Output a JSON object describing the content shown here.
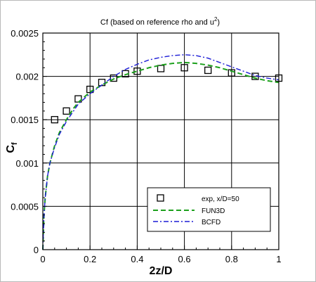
{
  "chart_data": {
    "type": "line",
    "title": "Cf (based on reference rho and u",
    "title_superscript": "2",
    "title_close": ")",
    "xlabel": "2z/D",
    "ylabel": "C",
    "ylabel_subscript": "f",
    "xlim": [
      0,
      1
    ],
    "ylim": [
      0,
      0.0025
    ],
    "x_ticks": [
      0,
      0.2,
      0.4,
      0.6,
      0.8,
      1
    ],
    "x_tick_labels": [
      "0",
      "0.2",
      "0.4",
      "0.6",
      "0.8",
      "1"
    ],
    "y_ticks": [
      0,
      0.0005,
      0.001,
      0.0015,
      0.002,
      0.0025
    ],
    "y_tick_labels": [
      "0",
      "0.0005",
      "0.001",
      "0.0015",
      "0.002",
      "0.0025"
    ],
    "grid": true,
    "legend_position": "bottom-right",
    "series": [
      {
        "name": "exp, x/D=50",
        "style": "markers",
        "marker": "open-square",
        "color": "#000000",
        "x": [
          0.05,
          0.1,
          0.15,
          0.2,
          0.25,
          0.3,
          0.35,
          0.4,
          0.5,
          0.6,
          0.7,
          0.8,
          0.9,
          1.0
        ],
        "y": [
          0.0015,
          0.0016,
          0.00174,
          0.00185,
          0.00193,
          0.00198,
          0.00203,
          0.00206,
          0.00209,
          0.0021,
          0.00207,
          0.00204,
          0.002,
          0.00198
        ]
      },
      {
        "name": "FUN3D",
        "style": "dashed",
        "color": "#1ca01c",
        "x": [
          0,
          0.005,
          0.01,
          0.02,
          0.03,
          0.05,
          0.07,
          0.1,
          0.13,
          0.15,
          0.2,
          0.25,
          0.3,
          0.35,
          0.4,
          0.45,
          0.5,
          0.55,
          0.6,
          0.65,
          0.7,
          0.75,
          0.8,
          0.85,
          0.9,
          0.95,
          1.0
        ],
        "y": [
          0,
          0.0004,
          0.0006,
          0.00085,
          0.001,
          0.0012,
          0.00135,
          0.0015,
          0.00163,
          0.0017,
          0.00182,
          0.0019,
          0.00197,
          0.00202,
          0.00206,
          0.0021,
          0.00213,
          0.00215,
          0.00216,
          0.00215,
          0.00213,
          0.0021,
          0.00206,
          0.00202,
          0.00198,
          0.00195,
          0.00193
        ]
      },
      {
        "name": "BCFD",
        "style": "dashdot",
        "color": "#1c1cd6",
        "x": [
          0,
          0.005,
          0.01,
          0.02,
          0.03,
          0.05,
          0.07,
          0.1,
          0.13,
          0.15,
          0.2,
          0.25,
          0.3,
          0.35,
          0.4,
          0.45,
          0.5,
          0.55,
          0.6,
          0.65,
          0.7,
          0.75,
          0.8,
          0.85,
          0.9,
          0.95,
          1.0
        ],
        "y": [
          0,
          0.0004,
          0.0006,
          0.00085,
          0.001,
          0.00118,
          0.00133,
          0.00148,
          0.0016,
          0.00168,
          0.0018,
          0.0019,
          0.002,
          0.00208,
          0.00214,
          0.00219,
          0.00222,
          0.00224,
          0.00225,
          0.00224,
          0.00221,
          0.00216,
          0.00211,
          0.00206,
          0.00201,
          0.00198,
          0.00196
        ]
      }
    ]
  }
}
